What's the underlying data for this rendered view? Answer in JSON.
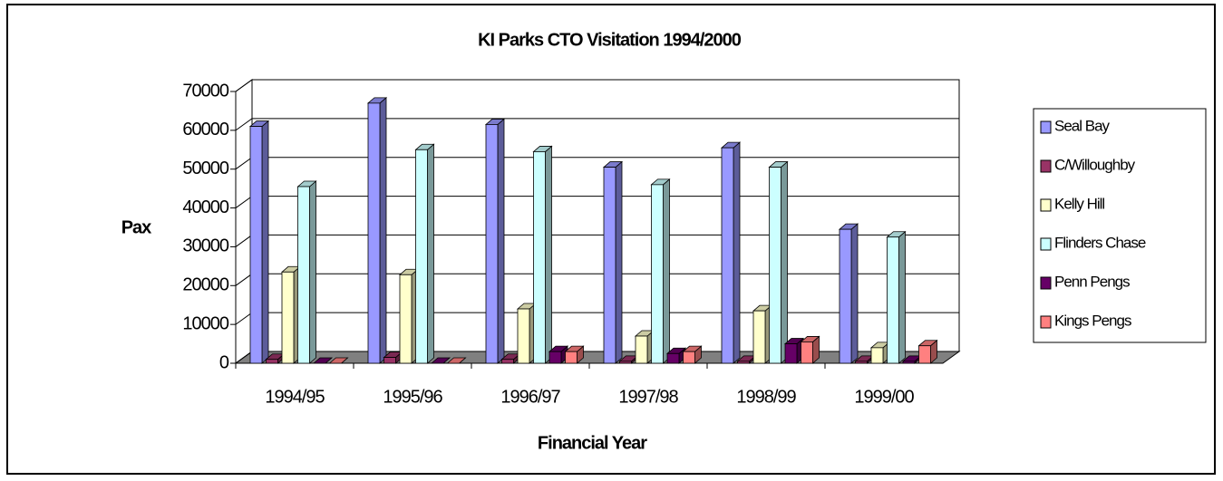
{
  "chart_data": {
    "type": "bar3d",
    "title": "KI Parks CTO Visitation 1994/2000",
    "x_label": "Financial Year",
    "y_label": "Pax",
    "categories": [
      "1994/95",
      "1995/96",
      "1996/97",
      "1997/98",
      "1998/99",
      "1999/00"
    ],
    "series": [
      {
        "name": "Seal Bay",
        "color": "#9999ff",
        "values": [
          61000,
          67000,
          61500,
          50500,
          55500,
          34500
        ]
      },
      {
        "name": "C/Willoughby",
        "color": "#993366",
        "values": [
          1000,
          1500,
          1000,
          500,
          500,
          500
        ]
      },
      {
        "name": "Kelly Hill",
        "color": "#ffffcc",
        "values": [
          23500,
          22800,
          14000,
          7000,
          13500,
          4000
        ]
      },
      {
        "name": "Flinders Chase",
        "color": "#ccffff",
        "values": [
          45500,
          55000,
          54500,
          46000,
          50500,
          32500
        ]
      },
      {
        "name": "Penn Pengs",
        "color": "#660066",
        "values": [
          0,
          0,
          3000,
          2500,
          5000,
          500
        ]
      },
      {
        "name": "Kings Pengs",
        "color": "#ff8080",
        "values": [
          0,
          0,
          3000,
          3000,
          5500,
          4500
        ]
      }
    ],
    "ylim": [
      0,
      70000
    ],
    "yticks": [
      0,
      10000,
      20000,
      30000,
      40000,
      50000,
      60000,
      70000
    ],
    "grid": true,
    "legend": "right"
  }
}
